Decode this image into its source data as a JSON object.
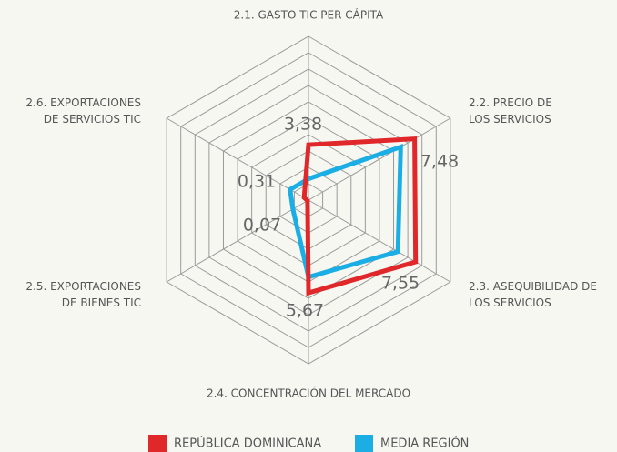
{
  "chart_data": {
    "type": "radar",
    "categories": [
      "2.1. GASTO TIC PER CÁPITA",
      "2.2. PRECIO DE LOS SERVICIOS",
      "2.3. ASEQUIBILIDAD DE LOS SERVICIOS",
      "2.4. CONCENTRACIÓN DEL MERCADO",
      "2.5. EXPORTACIONES DE BIENES TIC",
      "2.6. EXPORTACIONES DE SERVICIOS TIC"
    ],
    "series": [
      {
        "name": "REPÚBLICA DOMINICANA",
        "color": "#e0282a",
        "values": [
          3.38,
          7.48,
          7.55,
          5.67,
          0.07,
          0.31
        ],
        "value_labels": [
          "3,38",
          "7,48",
          "7,55",
          "5,67",
          "0,07",
          "0,31"
        ]
      },
      {
        "name": "MEDIA REGIÓN",
        "color": "#1aaee5",
        "values": [
          1.3,
          6.5,
          6.3,
          4.7,
          1.1,
          1.3
        ]
      }
    ],
    "rlim": [
      0,
      10
    ],
    "rticks": [
      1,
      2,
      3,
      4,
      5,
      6,
      7,
      8,
      9,
      10
    ],
    "grid": true
  }
}
